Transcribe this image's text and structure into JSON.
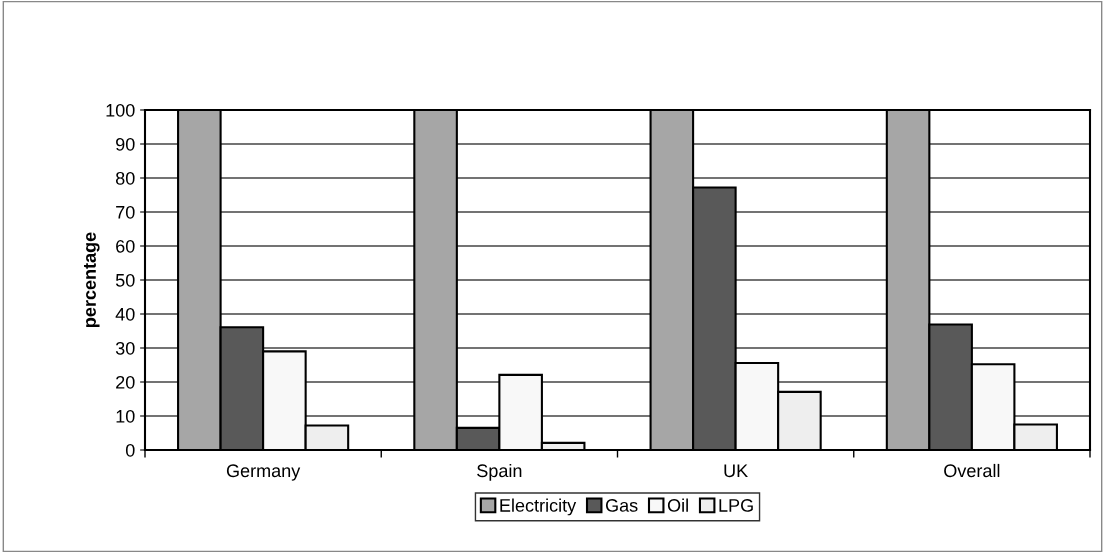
{
  "chart_data": {
    "type": "bar",
    "ylabel": "percentage",
    "categories": [
      "Germany",
      "Spain",
      "UK",
      "Overall"
    ],
    "series": [
      {
        "name": "Electricity",
        "color": "#a6a6a6",
        "values": [
          100,
          100,
          100,
          100
        ]
      },
      {
        "name": "Gas",
        "color": "#595959",
        "values": [
          36.1,
          6.5,
          77.2,
          36.9
        ]
      },
      {
        "name": "Oil",
        "color": "#f8f8f8",
        "values": [
          29,
          22.1,
          25.6,
          25.2
        ]
      },
      {
        "name": "LPG",
        "color": "#eeeeee",
        "values": [
          7.2,
          2.1,
          17.1,
          7.5
        ]
      }
    ],
    "ylim": [
      0,
      100
    ],
    "yticks": [
      0,
      10,
      20,
      30,
      40,
      50,
      60,
      70,
      80,
      90,
      100
    ],
    "grid": "y",
    "legend": "bottom"
  }
}
